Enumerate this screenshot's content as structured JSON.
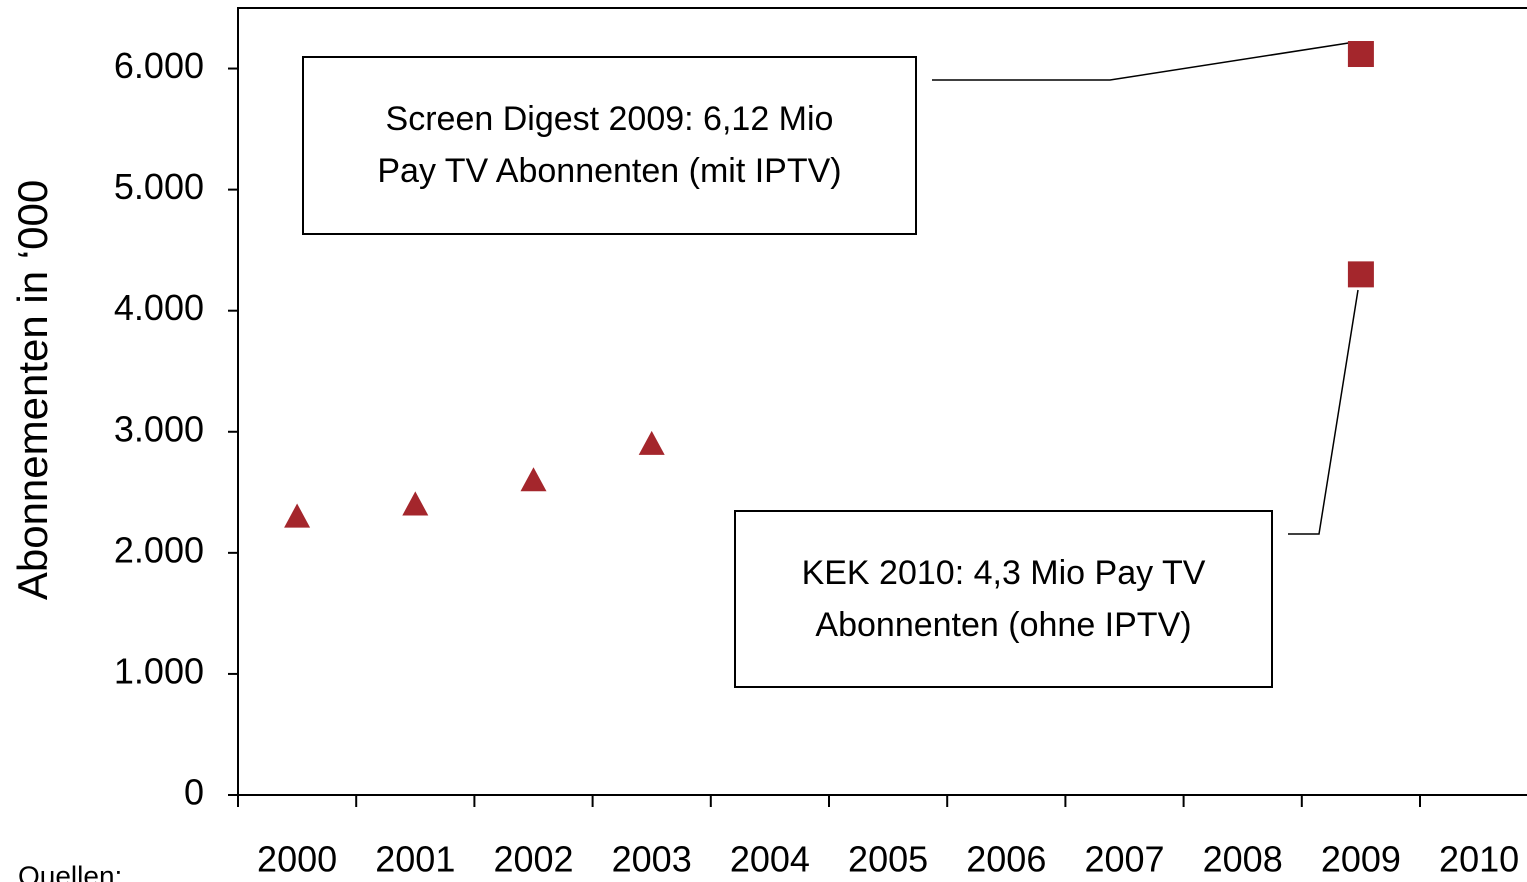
{
  "chart_data": {
    "type": "scatter",
    "y_label": "Abonnementen in ‘000",
    "categories": [
      "2000",
      "2001",
      "2002",
      "2003",
      "2004",
      "2005",
      "2006",
      "2007",
      "2008",
      "2009",
      "2010"
    ],
    "series": [
      {
        "color": "#a4262c",
        "marker": "triangle",
        "values": [
          2300,
          2400,
          2600,
          2900,
          null,
          null,
          null,
          null,
          null,
          null,
          null
        ]
      },
      {
        "color": "#a4262c",
        "marker": "square",
        "values": [
          null,
          null,
          null,
          null,
          null,
          null,
          null,
          null,
          null,
          6120,
          null
        ]
      },
      {
        "color": "#a4262c",
        "marker": "square",
        "values": [
          null,
          null,
          null,
          null,
          null,
          null,
          null,
          null,
          null,
          4300,
          null
        ]
      }
    ],
    "ylim": [
      0,
      6500
    ],
    "yticks": [
      0,
      {
        "value": 1000,
        "label": "1.000"
      },
      {
        "value": 2000,
        "label": "2.000"
      },
      {
        "value": 3000,
        "label": "3.000"
      },
      {
        "value": 4000,
        "label": "4.000"
      },
      {
        "value": 5000,
        "label": "5.000"
      },
      {
        "value": 6000,
        "label": "6.000"
      }
    ],
    "annotations": [
      {
        "lines": [
          "Screen Digest 2009: 6,12 Mio",
          "Pay TV Abonnenten (mit IPTV)"
        ]
      },
      {
        "lines": [
          "KEK 2010: 4,3 Mio Pay TV",
          "Abonnenten (ohne IPTV)"
        ]
      }
    ],
    "source_label": "Quellen:"
  }
}
